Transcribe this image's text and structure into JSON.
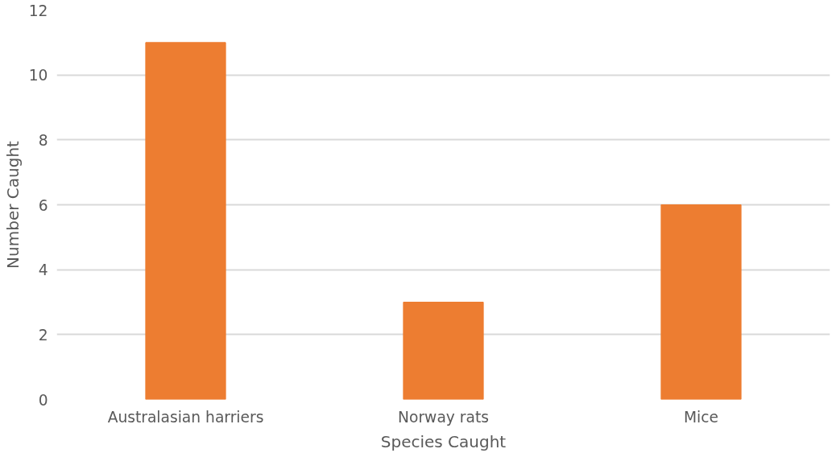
{
  "chart_data": {
    "type": "bar",
    "xlabel": "Species Caught",
    "ylabel": "Number Caught",
    "categories": [
      "Australasian harriers",
      "Norway rats",
      "Mice"
    ],
    "series": [
      {
        "color": "#ed7d31",
        "values": [
          11,
          3,
          6
        ]
      }
    ],
    "ylim": [
      0,
      12
    ],
    "yticks": [
      0,
      2,
      4,
      6,
      8,
      10,
      12
    ],
    "grid": "y"
  }
}
